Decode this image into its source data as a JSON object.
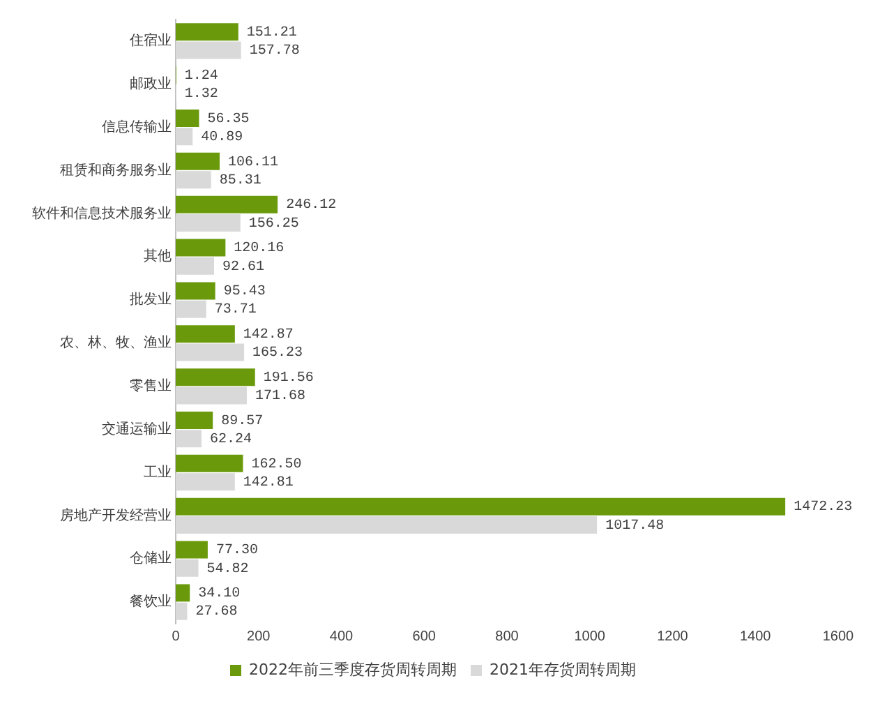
{
  "chart_data": {
    "type": "bar",
    "orientation": "horizontal",
    "categories": [
      "住宿业",
      "邮政业",
      "信息传输业",
      "租赁和商务服务业",
      "软件和信息技术服务业",
      "其他",
      "批发业",
      "农、林、牧、渔业",
      "零售业",
      "交通运输业",
      "工业",
      "房地产开发经营业",
      "仓储业",
      "餐饮业"
    ],
    "series": [
      {
        "name": "2022年前三季度存货周转周期",
        "color": "#6a9a0c",
        "values": [
          151.21,
          1.24,
          56.35,
          106.11,
          246.12,
          120.16,
          95.43,
          142.87,
          191.56,
          89.57,
          162.5,
          1472.23,
          77.3,
          34.1
        ],
        "value_labels": [
          "151.21",
          "1.24",
          "56.35",
          "106.11",
          "246.12",
          "120.16",
          "95.43",
          "142.87",
          "191.56",
          "89.57",
          "162.50",
          "1472.23",
          "77.30",
          "34.10"
        ]
      },
      {
        "name": "2021年存货周转周期",
        "color": "#d9d9d9",
        "values": [
          157.78,
          1.32,
          40.89,
          85.31,
          156.25,
          92.61,
          73.71,
          165.23,
          171.68,
          62.24,
          142.81,
          1017.48,
          54.82,
          27.68
        ],
        "value_labels": [
          "157.78",
          "1.32",
          "40.89",
          "85.31",
          "156.25",
          "92.61",
          "73.71",
          "165.23",
          "171.68",
          "62.24",
          "142.81",
          "1017.48",
          "54.82",
          "27.68"
        ]
      }
    ],
    "xlim": [
      0,
      1600
    ],
    "xticks": [
      0,
      200,
      400,
      600,
      800,
      1000,
      1200,
      1400,
      1600
    ],
    "grid": false,
    "legend": "bottom"
  }
}
